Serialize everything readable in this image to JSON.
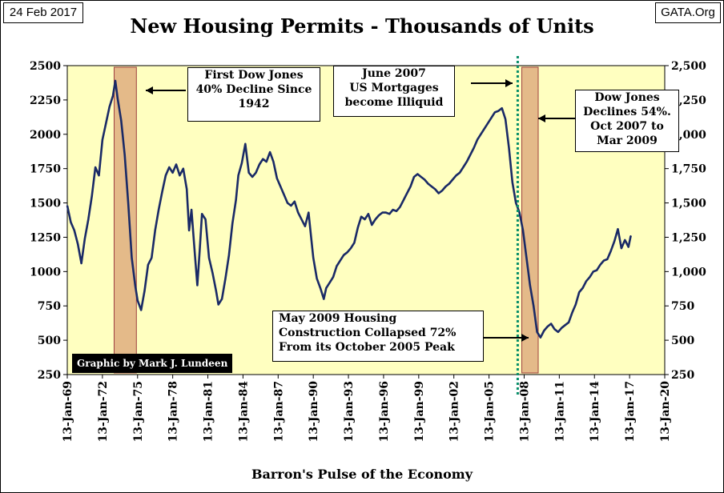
{
  "header": {
    "date": "24 Feb 2017",
    "source": "GATA.Org"
  },
  "chart_data": {
    "type": "line",
    "title": "New Housing Permits - Thousands of Units",
    "xlabel": "Barron's Pulse of the Economy",
    "ylabel": "",
    "ylim": [
      250,
      2500
    ],
    "xlim": [
      1969.0,
      2020.0
    ],
    "grid": false,
    "legend": "none",
    "y_ticks_left": [
      "2500",
      "2250",
      "2000",
      "1750",
      "1500",
      "1250",
      "1000",
      "750",
      "500",
      "250"
    ],
    "y_ticks_right": [
      "2,500",
      "2,250",
      "2,000",
      "1,750",
      "1,500",
      "1,250",
      "1,000",
      "750",
      "500",
      "250"
    ],
    "x_ticks": [
      "13-Jan-69",
      "13-Jan-72",
      "13-Jan-75",
      "13-Jan-78",
      "13-Jan-81",
      "13-Jan-84",
      "13-Jan-87",
      "13-Jan-90",
      "13-Jan-93",
      "13-Jan-96",
      "13-Jan-99",
      "13-Jan-02",
      "13-Jan-05",
      "13-Jan-08",
      "13-Jan-11",
      "13-Jan-14",
      "13-Jan-17",
      "13-Jan-20"
    ],
    "series": [
      {
        "name": "",
        "color": "#1a2a66",
        "x": [
          1969.0,
          1969.3,
          1969.6,
          1969.9,
          1970.2,
          1970.5,
          1970.8,
          1971.1,
          1971.4,
          1971.7,
          1972.0,
          1972.3,
          1972.6,
          1972.9,
          1973.1,
          1973.3,
          1973.6,
          1973.9,
          1974.2,
          1974.5,
          1974.8,
          1975.0,
          1975.3,
          1975.6,
          1975.9,
          1976.2,
          1976.5,
          1976.8,
          1977.1,
          1977.4,
          1977.7,
          1978.0,
          1978.3,
          1978.6,
          1978.9,
          1979.2,
          1979.4,
          1979.6,
          1979.9,
          1980.1,
          1980.3,
          1980.5,
          1980.8,
          1981.1,
          1981.4,
          1981.7,
          1981.9,
          1982.2,
          1982.5,
          1982.8,
          1983.1,
          1983.4,
          1983.6,
          1983.9,
          1984.2,
          1984.5,
          1984.8,
          1985.1,
          1985.4,
          1985.7,
          1986.0,
          1986.3,
          1986.6,
          1986.9,
          1987.2,
          1987.5,
          1987.8,
          1988.1,
          1988.4,
          1988.7,
          1989.0,
          1989.3,
          1989.6,
          1989.8,
          1990.0,
          1990.3,
          1990.6,
          1990.9,
          1991.1,
          1991.4,
          1991.7,
          1992.0,
          1992.3,
          1992.6,
          1992.9,
          1993.2,
          1993.5,
          1993.8,
          1994.1,
          1994.4,
          1994.7,
          1995.0,
          1995.3,
          1995.6,
          1995.9,
          1996.2,
          1996.5,
          1996.8,
          1997.1,
          1997.4,
          1997.7,
          1998.0,
          1998.3,
          1998.6,
          1998.9,
          1999.2,
          1999.5,
          1999.8,
          2000.1,
          2000.4,
          2000.7,
          2001.0,
          2001.3,
          2001.6,
          2001.9,
          2002.2,
          2002.5,
          2002.8,
          2003.1,
          2003.4,
          2003.7,
          2004.0,
          2004.3,
          2004.6,
          2004.9,
          2005.2,
          2005.5,
          2005.8,
          2006.1,
          2006.4,
          2006.7,
          2007.0,
          2007.3,
          2007.6,
          2007.9,
          2008.2,
          2008.5,
          2008.8,
          2009.1,
          2009.4,
          2009.7,
          2010.0,
          2010.3,
          2010.6,
          2010.9,
          2011.2,
          2011.5,
          2011.8,
          2012.1,
          2012.4,
          2012.7,
          2013.0,
          2013.3,
          2013.6,
          2013.9,
          2014.2,
          2014.5,
          2014.8,
          2015.1,
          2015.4,
          2015.7,
          2016.0,
          2016.3,
          2016.6,
          2016.9,
          2017.1
        ],
        "values": [
          1480,
          1360,
          1300,
          1200,
          1060,
          1240,
          1380,
          1550,
          1760,
          1700,
          1960,
          2080,
          2200,
          2280,
          2390,
          2260,
          2100,
          1850,
          1500,
          1100,
          900,
          790,
          720,
          860,
          1050,
          1100,
          1300,
          1450,
          1580,
          1700,
          1760,
          1720,
          1780,
          1700,
          1750,
          1600,
          1300,
          1450,
          1120,
          900,
          1150,
          1420,
          1380,
          1100,
          990,
          860,
          760,
          800,
          950,
          1120,
          1350,
          1520,
          1700,
          1790,
          1930,
          1720,
          1690,
          1720,
          1780,
          1820,
          1800,
          1870,
          1800,
          1680,
          1620,
          1560,
          1500,
          1480,
          1510,
          1430,
          1380,
          1330,
          1430,
          1260,
          1100,
          950,
          880,
          800,
          880,
          920,
          960,
          1040,
          1080,
          1120,
          1140,
          1170,
          1210,
          1320,
          1400,
          1380,
          1420,
          1340,
          1380,
          1410,
          1430,
          1430,
          1420,
          1450,
          1440,
          1470,
          1520,
          1570,
          1620,
          1690,
          1710,
          1690,
          1670,
          1640,
          1620,
          1600,
          1570,
          1590,
          1620,
          1640,
          1670,
          1700,
          1720,
          1760,
          1800,
          1850,
          1900,
          1960,
          2000,
          2040,
          2080,
          2120,
          2160,
          2170,
          2190,
          2110,
          1900,
          1650,
          1500,
          1430,
          1300,
          1100,
          900,
          750,
          560,
          520,
          570,
          600,
          620,
          580,
          560,
          590,
          610,
          630,
          700,
          760,
          850,
          880,
          930,
          960,
          1000,
          1010,
          1050,
          1080,
          1090,
          1150,
          1220,
          1310,
          1170,
          1230,
          1180,
          1260
        ]
      }
    ],
    "annotations": [
      {
        "id": "1942",
        "text": "First Dow Jones\n40% Decline Since\n1942"
      },
      {
        "id": "2007",
        "text": "June 2007\nUS Mortgages\nbecome Illiquid"
      },
      {
        "id": "2009",
        "text": "Dow Jones\nDeclines 54%.\nOct 2007 to\nMar 2009"
      },
      {
        "id": "may2009",
        "text": "May 2009 Housing\nConstruction Collapsed 72%\nFrom its October 2005 Peak"
      }
    ],
    "shaded_periods": [
      {
        "x0": 1973.0,
        "x1": 1974.9
      },
      {
        "x0": 2007.8,
        "x1": 2009.2
      }
    ],
    "vertical_marker": {
      "x": 2007.45
    },
    "credit": "Graphic by Mark J. Lundeen"
  }
}
